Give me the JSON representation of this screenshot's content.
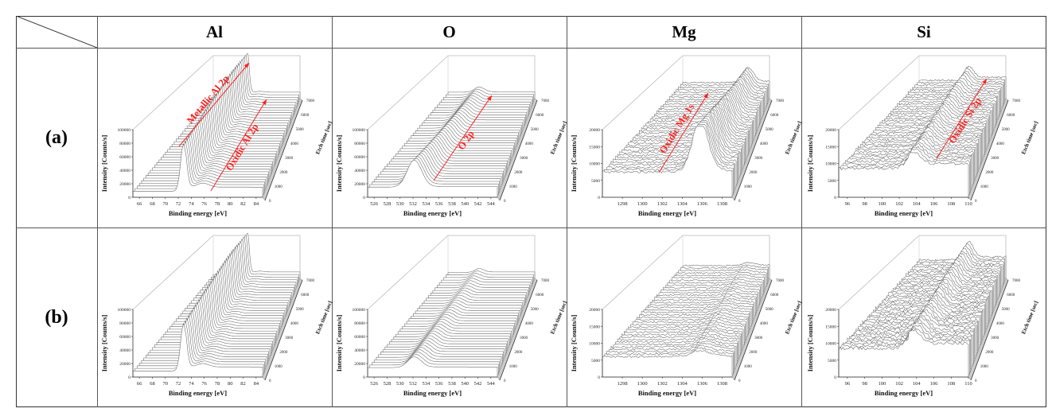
{
  "columns": [
    "Al",
    "O",
    "Mg",
    "Si"
  ],
  "rows": [
    "(a)",
    "(b)"
  ],
  "axis_labels": {
    "y": "Intensity [Counts/s]",
    "x": "Binding energy [eV]",
    "z": "Etch time [sec]"
  },
  "colors": {
    "annotation": "#ff2020",
    "line": "#555555"
  },
  "chart_data": [
    {
      "type": "line",
      "variant": "3d-waterfall",
      "row": "(a)",
      "element": "Al",
      "xlim": [
        65,
        85
      ],
      "xticks": [
        66,
        68,
        70,
        72,
        74,
        76,
        78,
        80,
        82,
        84
      ],
      "ylim": [
        0,
        100000
      ],
      "yticks": [
        0,
        20000,
        40000,
        60000,
        80000,
        100000
      ],
      "zticks": [
        0,
        1000,
        2000,
        3000,
        4000,
        5000,
        6000,
        7000
      ],
      "baseline": 9000,
      "step": {
        "at": 73,
        "height": 6000
      },
      "peaks": [
        {
          "name": "Metallic Al 2p",
          "position": 72.8,
          "width": 0.45,
          "height_start": 70000,
          "height_end": 105000
        },
        {
          "name": "Oxidic Al 2p",
          "position": 75.8,
          "width": 0.9,
          "height_start": 6000,
          "height_end": 2000
        }
      ],
      "noise": 0,
      "annotations": [
        "Metallic Al 2p",
        "Oxidic Al 2p"
      ]
    },
    {
      "type": "line",
      "variant": "3d-waterfall",
      "row": "(a)",
      "element": "O",
      "xlim": [
        525,
        545
      ],
      "xticks": [
        526,
        528,
        530,
        532,
        534,
        536,
        538,
        540,
        542,
        544
      ],
      "ylim": [
        0,
        100000
      ],
      "yticks": [
        0,
        20000,
        40000,
        60000,
        80000,
        100000
      ],
      "zticks": [
        0,
        1000,
        2000,
        3000,
        4000,
        5000,
        6000,
        7000
      ],
      "baseline": 15000,
      "step": {
        "at": 533,
        "height": 1000
      },
      "peaks": [
        {
          "name": "O 2p",
          "position": 532.2,
          "width": 1.1,
          "height_start": 40000,
          "height_end": 12000
        }
      ],
      "noise": 0,
      "annotations": [
        "O 2p"
      ]
    },
    {
      "type": "line",
      "variant": "3d-waterfall",
      "row": "(a)",
      "element": "Mg",
      "xlim": [
        1296,
        1309
      ],
      "xticks": [
        1298,
        1300,
        1302,
        1304,
        1306,
        1308
      ],
      "ylim": [
        0,
        20000
      ],
      "yticks": [
        0,
        5000,
        10000,
        15000,
        20000
      ],
      "zticks": [
        0,
        1000,
        2000,
        3000,
        4000,
        5000,
        6000,
        7000
      ],
      "baseline": 7500,
      "step": {
        "at": 1305,
        "height": 500
      },
      "peaks": [
        {
          "name": "Oxidic Mg 1s",
          "position": 1305.8,
          "width": 0.8,
          "height_start": 14500,
          "height_end": 6500
        }
      ],
      "noise": 350,
      "annotations": [
        "Oxidic Mg 1s"
      ]
    },
    {
      "type": "line",
      "variant": "3d-waterfall",
      "row": "(a)",
      "element": "Si",
      "xlim": [
        95,
        110
      ],
      "xticks": [
        96,
        98,
        100,
        102,
        104,
        106,
        108,
        110
      ],
      "ylim": [
        0,
        20000
      ],
      "yticks": [
        0,
        5000,
        10000,
        15000,
        20000
      ],
      "zticks": [
        0,
        1000,
        2000,
        3000,
        4000,
        5000,
        6000,
        7000
      ],
      "baseline": 8500,
      "step": {
        "at": 103,
        "height": 1500
      },
      "peaks": [
        {
          "name": "Oxidic Si 2p",
          "position": 103.6,
          "width": 0.8,
          "height_start": 3500,
          "height_end": 5000
        }
      ],
      "noise": 400,
      "annotations": [
        "Oxidic Si 2p"
      ]
    },
    {
      "type": "line",
      "variant": "3d-waterfall",
      "row": "(b)",
      "element": "Al",
      "xlim": [
        65,
        85
      ],
      "xticks": [
        66,
        68,
        70,
        72,
        74,
        76,
        78,
        80,
        82,
        84
      ],
      "ylim": [
        0,
        100000
      ],
      "yticks": [
        0,
        20000,
        40000,
        60000,
        80000,
        100000
      ],
      "zticks": [
        0,
        1000,
        2000,
        3000,
        4000,
        5000,
        6000,
        7000
      ],
      "baseline": 9000,
      "step": {
        "at": 73,
        "height": 6000
      },
      "peaks": [
        {
          "position": 72.8,
          "width": 0.45,
          "height_start": 70000,
          "height_end": 105000
        },
        {
          "position": 75.8,
          "width": 0.9,
          "height_start": 5000,
          "height_end": 2000
        }
      ],
      "noise": 0,
      "annotations": []
    },
    {
      "type": "line",
      "variant": "3d-waterfall",
      "row": "(b)",
      "element": "O",
      "xlim": [
        525,
        545
      ],
      "xticks": [
        526,
        528,
        530,
        532,
        534,
        536,
        538,
        540,
        542,
        544
      ],
      "ylim": [
        0,
        100000
      ],
      "yticks": [
        0,
        20000,
        40000,
        60000,
        80000,
        100000
      ],
      "zticks": [
        0,
        1000,
        2000,
        3000,
        4000,
        5000,
        6000,
        7000
      ],
      "baseline": 14000,
      "step": {
        "at": 533,
        "height": 1000
      },
      "peaks": [
        {
          "position": 532.2,
          "width": 1.0,
          "height_start": 16000,
          "height_end": 9000
        }
      ],
      "noise": 0,
      "annotations": []
    },
    {
      "type": "line",
      "variant": "3d-waterfall",
      "row": "(b)",
      "element": "Mg",
      "xlim": [
        1296,
        1309
      ],
      "xticks": [
        1298,
        1300,
        1302,
        1304,
        1306,
        1308
      ],
      "ylim": [
        0,
        20000
      ],
      "yticks": [
        0,
        5000,
        10000,
        15000,
        20000
      ],
      "zticks": [
        0,
        1000,
        2000,
        3000,
        4000,
        5000,
        6000,
        7000
      ],
      "baseline": 6000,
      "step": {
        "at": 1305,
        "height": 300
      },
      "peaks": [
        {
          "position": 1305.8,
          "width": 0.9,
          "height_start": 1500,
          "height_end": 1000
        }
      ],
      "noise": 300,
      "annotations": []
    },
    {
      "type": "line",
      "variant": "3d-waterfall",
      "row": "(b)",
      "element": "Si",
      "xlim": [
        95,
        110
      ],
      "xticks": [
        96,
        98,
        100,
        102,
        104,
        106,
        108,
        110
      ],
      "ylim": [
        0,
        20000
      ],
      "yticks": [
        0,
        5000,
        10000,
        15000,
        20000
      ],
      "zticks": [
        0,
        1000,
        2000,
        3000,
        4000,
        5000,
        6000,
        7000
      ],
      "baseline": 8500,
      "step": {
        "at": 103,
        "height": 1500
      },
      "peaks": [
        {
          "position": 103.6,
          "width": 0.8,
          "height_start": 4000,
          "height_end": 7000
        }
      ],
      "noise": 500,
      "annotations": []
    }
  ]
}
